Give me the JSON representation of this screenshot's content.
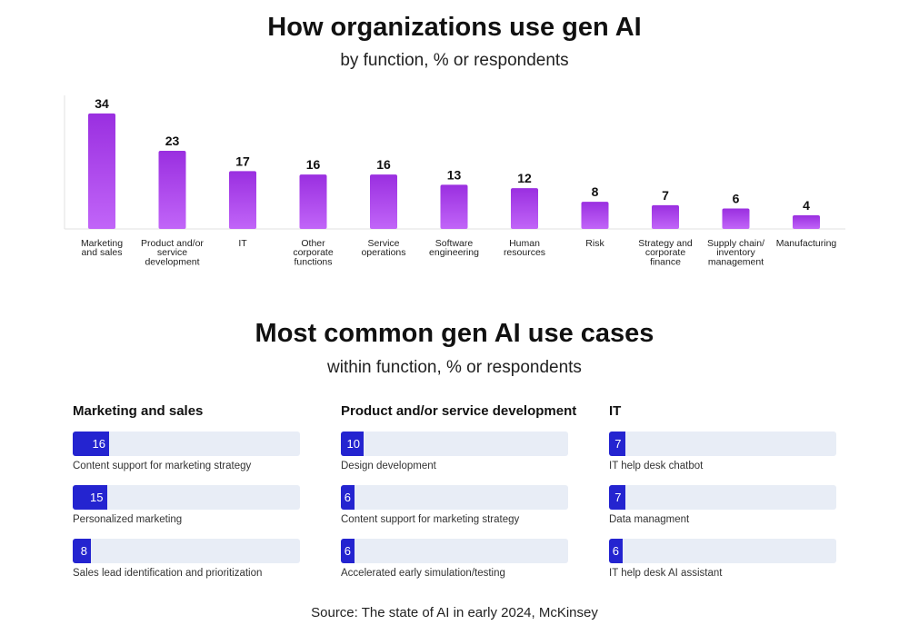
{
  "chart_data": [
    {
      "type": "bar",
      "title": "How organizations use gen AI",
      "subtitle": "by function, % or respondents",
      "categories": [
        [
          "Marketing",
          "and sales"
        ],
        [
          "Product and/or",
          "service",
          "development"
        ],
        [
          "IT"
        ],
        [
          "Other",
          "corporate",
          "functions"
        ],
        [
          "Service",
          "operations"
        ],
        [
          "Software",
          "engineering"
        ],
        [
          "Human",
          "resources"
        ],
        [
          "Risk"
        ],
        [
          "Strategy and",
          "corporate",
          "finance"
        ],
        [
          "Supply chain/",
          "inventory",
          "management"
        ],
        [
          "Manufacturing"
        ]
      ],
      "values": [
        34,
        23,
        17,
        16,
        16,
        13,
        12,
        8,
        7,
        6,
        4
      ],
      "grid": false,
      "colors": {
        "bar_top": "#9a2fe0",
        "bar_bottom": "#c165f8"
      }
    },
    {
      "type": "bar",
      "orientation": "horizontal",
      "title": "Most common gen AI use cases",
      "subtitle": "within function, % or respondents",
      "xlim": [
        0,
        100
      ],
      "colors": {
        "fill": "#2424d0",
        "track": "#e8edf6"
      },
      "groups": [
        {
          "name": "Marketing and sales",
          "items": [
            {
              "label": "Content support for marketing strategy",
              "value": 16
            },
            {
              "label": "Personalized marketing",
              "value": 15
            },
            {
              "label": "Sales lead identification and prioritization",
              "value": 8
            }
          ]
        },
        {
          "name": "Product and/or service development",
          "items": [
            {
              "label": "Design development",
              "value": 10
            },
            {
              "label": "Content support for marketing strategy",
              "value": 6
            },
            {
              "label": "Accelerated early simulation/testing",
              "value": 6
            }
          ]
        },
        {
          "name": "IT",
          "items": [
            {
              "label": "IT help desk chatbot",
              "value": 7
            },
            {
              "label": "Data managment",
              "value": 7
            },
            {
              "label": "IT help desk AI assistant",
              "value": 6
            }
          ]
        }
      ]
    }
  ],
  "source": "Source: The state of AI in early 2024, McKinsey"
}
